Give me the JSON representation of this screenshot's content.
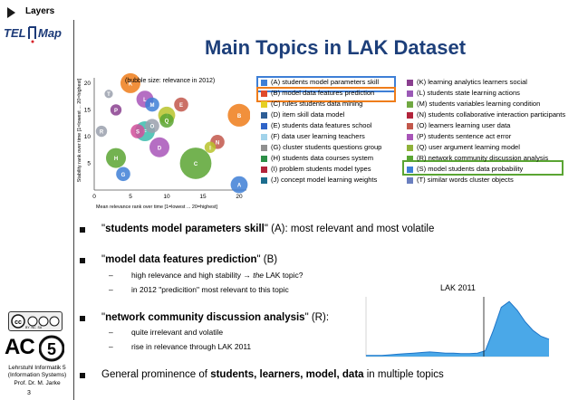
{
  "sidebar": {
    "layers_label": "Layers",
    "logo_text_left": "TEL",
    "logo_text_right": "Map",
    "cc_badge_text": "BY  NC  SA",
    "ac_logo_text": "AC",
    "affiliation": [
      "Lehrstuhl Informatik 5",
      "(Information Systems)",
      "Prof. Dr. M. Jarke"
    ],
    "page_number": "3"
  },
  "slide": {
    "title": "Main Topics in LAK Dataset"
  },
  "bubble_chart": {
    "note": "(bubble size: relevance in 2012)",
    "xlabel": "Mean relevance rank over time [1=lowest ... 20=highest]",
    "ylabel": "Stability rank over time [1=lowest ... 20=highest]",
    "xticks": [
      "0",
      "5",
      "10",
      "15",
      "20"
    ],
    "yticks": [
      "5",
      "10",
      "15",
      "20"
    ]
  },
  "chart_data": [
    {
      "type": "scatter",
      "xlim": [
        0,
        21
      ],
      "ylim": [
        0,
        21
      ],
      "grid": false,
      "points": [
        {
          "id": "A",
          "x": 20,
          "y": 1,
          "size": 4,
          "color": "#3e7fd6"
        },
        {
          "id": "B",
          "x": 20,
          "y": 14,
          "size": 6,
          "color": "#ef7d1a"
        },
        {
          "id": "C",
          "x": 14,
          "y": 5,
          "size": 9,
          "color": "#5aa533"
        },
        {
          "id": "D",
          "x": 9,
          "y": 8,
          "size": 5,
          "color": "#a855b8"
        },
        {
          "id": "E",
          "x": 12,
          "y": 16,
          "size": 3,
          "color": "#c2574b"
        },
        {
          "id": "F",
          "x": 7,
          "y": 11,
          "size": 5,
          "color": "#3cbcad"
        },
        {
          "id": "G",
          "x": 4,
          "y": 3,
          "size": 3,
          "color": "#3e7fd6"
        },
        {
          "id": "H",
          "x": 3,
          "y": 6,
          "size": 5,
          "color": "#5aa533"
        },
        {
          "id": "I",
          "x": 16,
          "y": 8,
          "size": 2,
          "color": "#b8c32c"
        },
        {
          "id": "J",
          "x": 10,
          "y": 14,
          "size": 4,
          "color": "#b8c32c"
        },
        {
          "id": "K",
          "x": 5,
          "y": 20,
          "size": 5,
          "color": "#ef7d1a"
        },
        {
          "id": "L",
          "x": 7,
          "y": 17,
          "size": 4,
          "color": "#a855b8"
        },
        {
          "id": "M",
          "x": 8,
          "y": 16,
          "size": 3,
          "color": "#3e7fd6"
        },
        {
          "id": "N",
          "x": 17,
          "y": 9,
          "size": 3,
          "color": "#c2574b"
        },
        {
          "id": "O",
          "x": 8,
          "y": 12,
          "size": 3,
          "color": "#9aa0ad"
        },
        {
          "id": "P",
          "x": 3,
          "y": 15,
          "size": 2,
          "color": "#8a3f8f"
        },
        {
          "id": "Q",
          "x": 10,
          "y": 13,
          "size": 3,
          "color": "#5aa533"
        },
        {
          "id": "R",
          "x": 1,
          "y": 11,
          "size": 2,
          "color": "#9aa0ad"
        },
        {
          "id": "S",
          "x": 6,
          "y": 11,
          "size": 3,
          "color": "#d14f9a"
        },
        {
          "id": "T",
          "x": 2,
          "y": 18,
          "size": 1,
          "color": "#9aa0ad"
        }
      ]
    },
    {
      "type": "area",
      "title": "LAK 2011",
      "values": [
        0.02,
        0.02,
        0.02,
        0.03,
        0.04,
        0.05,
        0.06,
        0.07,
        0.08,
        0.07,
        0.06,
        0.06,
        0.05,
        0.05,
        0.06,
        0.1,
        0.45,
        0.85,
        0.95,
        0.8,
        0.6,
        0.45,
        0.35,
        0.3
      ],
      "ylim": [
        0,
        1
      ]
    }
  ],
  "legend": {
    "left": [
      {
        "label": "(A) students model parameters skill",
        "color": "#3e7fd6"
      },
      {
        "label": "(B) model data features prediction",
        "color": "#e04a2b"
      },
      {
        "label": "(C) rules students data mining",
        "color": "#e6cf23"
      },
      {
        "label": "(D) item skill data model",
        "color": "#2e5e96"
      },
      {
        "label": "(E) students data features school",
        "color": "#2f64c8"
      },
      {
        "label": "(F) data user learning teachers",
        "color": "#a2d3ea"
      },
      {
        "label": "(G) cluster students questions group",
        "color": "#909090"
      },
      {
        "label": "(H) students data courses system",
        "color": "#2c8f47"
      },
      {
        "label": "(I) problem students model types",
        "color": "#b2243b"
      },
      {
        "label": "(J) concept model learning weights",
        "color": "#1c6d8e"
      }
    ],
    "right": [
      {
        "label": "(K) learning analytics learners social",
        "color": "#8a3f8f"
      },
      {
        "label": "(L) students state learning actions",
        "color": "#9b59b6"
      },
      {
        "label": "(M) students variables learning condition",
        "color": "#70a842"
      },
      {
        "label": "(N) students collaborative interaction participants",
        "color": "#b2243b"
      },
      {
        "label": "(O) learners learning user data",
        "color": "#c2574b"
      },
      {
        "label": "(P) students sentence act error",
        "color": "#a855b8"
      },
      {
        "label": "(Q) user argument learning model",
        "color": "#8fb23a"
      },
      {
        "label": "(R) network community discussion analysis",
        "color": "#5aa533"
      },
      {
        "label": "(S) model students data probability",
        "color": "#3e7fd6"
      },
      {
        "label": "(T) similar words cluster objects",
        "color": "#6a7fbf"
      }
    ]
  },
  "bullets": [
    {
      "pre": "\"",
      "bold": "students model parameters skill",
      "post": "\" (A): most relevant and most volatile"
    },
    {
      "pre": "\"",
      "bold": "model data features prediction",
      "post": "\" (B)"
    },
    {
      "pre": "\"",
      "bold": "network community discussion analysis",
      "post": "\" (R):"
    },
    {
      "pre": "General prominence of ",
      "bold": "students, learners, model, data",
      "post": " in multiple topics"
    }
  ],
  "subbullets": {
    "b1_line1_pre": "high relevance and high stability → ",
    "b1_line1_em": "the",
    "b1_line1_post": " LAK topic?",
    "b1_line2": "in 2012 \"predicition\" most relevant to this topic",
    "r1": "quite irrelevant and volatile",
    "r2": "rise in relevance through LAK 2011",
    "dash": "–"
  },
  "lak_chart": {
    "label": "LAK 2011",
    "fill_color": "#4aa8e8"
  }
}
